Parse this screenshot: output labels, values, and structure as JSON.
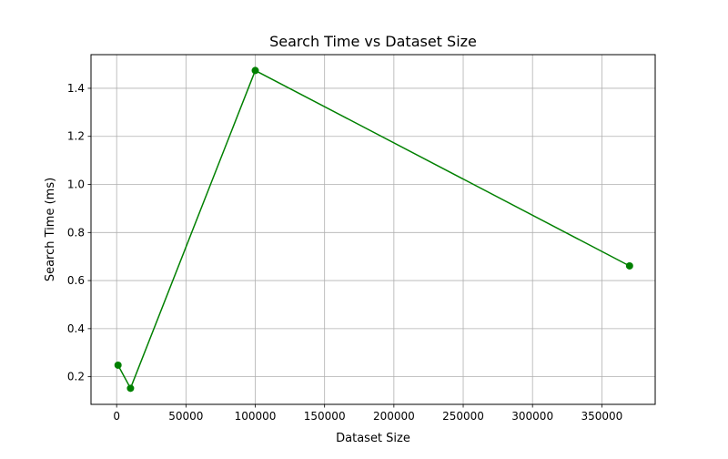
{
  "chart_data": {
    "type": "line",
    "title": "Search Time vs Dataset Size",
    "xlabel": "Dataset Size",
    "ylabel": "Search Time (ms)",
    "xlim": [
      -18500,
      388500
    ],
    "ylim": [
      0.085,
      1.54
    ],
    "xticks": [
      0,
      50000,
      100000,
      150000,
      200000,
      250000,
      300000,
      350000
    ],
    "xtick_labels": [
      "0",
      "50000",
      "100000",
      "150000",
      "200000",
      "250000",
      "300000",
      "350000"
    ],
    "yticks": [
      0.2,
      0.4,
      0.6,
      0.8,
      1.0,
      1.2,
      1.4
    ],
    "ytick_labels": [
      "0.2",
      "0.4",
      "0.6",
      "0.8",
      "1.0",
      "1.2",
      "1.4"
    ],
    "grid": true,
    "legend": false,
    "series": [
      {
        "x": [
          1000,
          10000,
          100000,
          370000
        ],
        "y": [
          0.248,
          0.152,
          1.474,
          0.661
        ],
        "color": "#008000",
        "marker": "circle"
      }
    ]
  }
}
